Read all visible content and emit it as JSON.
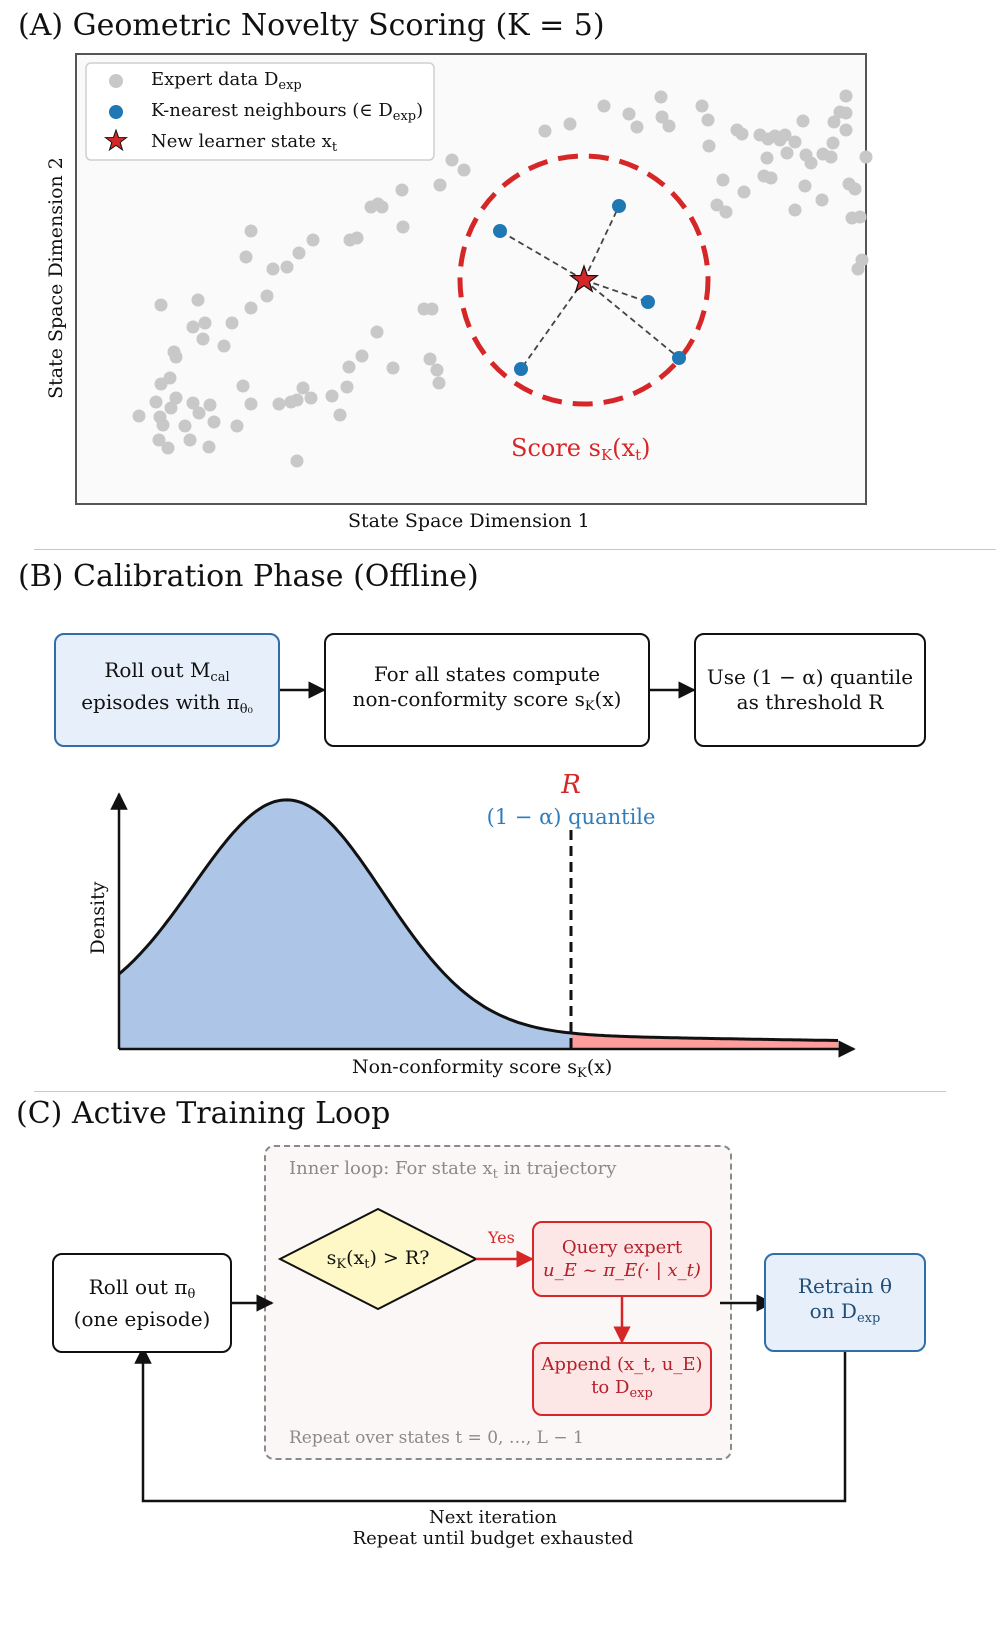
{
  "panel_a": {
    "title": "(A) Geometric Novelty Scoring (K = 5)",
    "xlabel": "State Space Dimension 1",
    "ylabel": "State Space Dimension 2",
    "legend": [
      {
        "label": "Expert data D",
        "sub": "exp",
        "marker": "grey-circle"
      },
      {
        "label": "K-nearest neighbours (∈ D",
        "sub": "exp",
        "tail": ")",
        "marker": "blue-circle"
      },
      {
        "label": "New learner state x",
        "sub": "t",
        "marker": "red-star"
      }
    ],
    "score_label": "Score s",
    "score_sub": "K",
    "score_tail": "(x",
    "score_tail_sub": "t",
    "score_close": ")",
    "colors": {
      "expert": "#c8c8c8",
      "neighbour": "#1f77b4",
      "learner": "#d62728",
      "circle": "#d62728"
    }
  },
  "panel_b": {
    "title": "(B) Calibration Phase (Offline)",
    "box1_line1": "Roll out M",
    "box1_line1_sub": "cal",
    "box1_line2": "episodes with π",
    "box1_line2_sub": "θ₀",
    "box2_line1": "For all states compute",
    "box2_line2": "non-conformity score s",
    "box2_line2_sub": "K",
    "box2_line2_tail": "(x)",
    "box3_line1": "Use (1 − α) quantile",
    "box3_line2": "as threshold R",
    "threshold_label": "R",
    "quantile_label": "(1 − α) quantile",
    "ylabel": "Density",
    "xlabel": "Non-conformity score s",
    "xlabel_sub": "K",
    "xlabel_tail": "(x)"
  },
  "panel_c": {
    "title": "(C) Active Training Loop",
    "inner_title": "Inner loop: For state x",
    "inner_title_sub": "t",
    "inner_title_tail": " in trajectory",
    "repeat_states": "Repeat over states t = 0, …, L − 1",
    "rollout_line1": "Roll out π",
    "rollout_line1_sub": "θ",
    "rollout_line2": "(one episode)",
    "decision": "s",
    "decision_sub": "K",
    "decision_tail": "(x",
    "decision_tail_sub": "t",
    "decision_close": ") > R?",
    "yes_label": "Yes",
    "query_line1": "Query expert",
    "query_line2": "u_E ~ π_E(· | x_t)",
    "append_line1": "Append (x_t, u_E)",
    "append_line2": "to D",
    "append_line2_sub": "exp",
    "retrain_line1": "Retrain θ",
    "retrain_line2": "on D",
    "retrain_line2_sub": "exp",
    "next_iteration": "Next iteration",
    "repeat_until": "Repeat until budget exhausted"
  }
}
